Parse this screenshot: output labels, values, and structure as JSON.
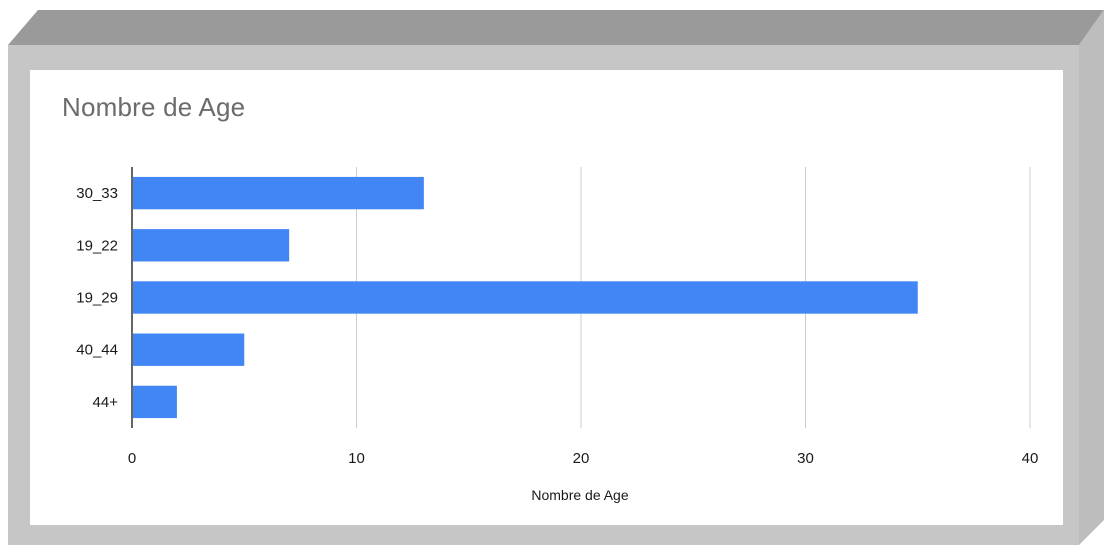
{
  "colors": {
    "bar": "#4285f4",
    "grid": "#cccccc",
    "frame_top": "#9a9a9a",
    "frame_side": "#b9b9b9",
    "frame_inner": "#c6c6c6"
  },
  "chart_data": {
    "type": "bar",
    "orientation": "horizontal",
    "title": "Nombre de Age",
    "xlabel": "Nombre de Age",
    "ylabel": "",
    "categories": [
      "30_33",
      "19_22",
      "19_29",
      "40_44",
      "44+"
    ],
    "values": [
      13,
      7,
      35,
      5,
      2
    ],
    "xlim": [
      0,
      40
    ],
    "xticks": [
      0,
      10,
      20,
      30,
      40
    ],
    "grid": true,
    "legend": "none"
  }
}
